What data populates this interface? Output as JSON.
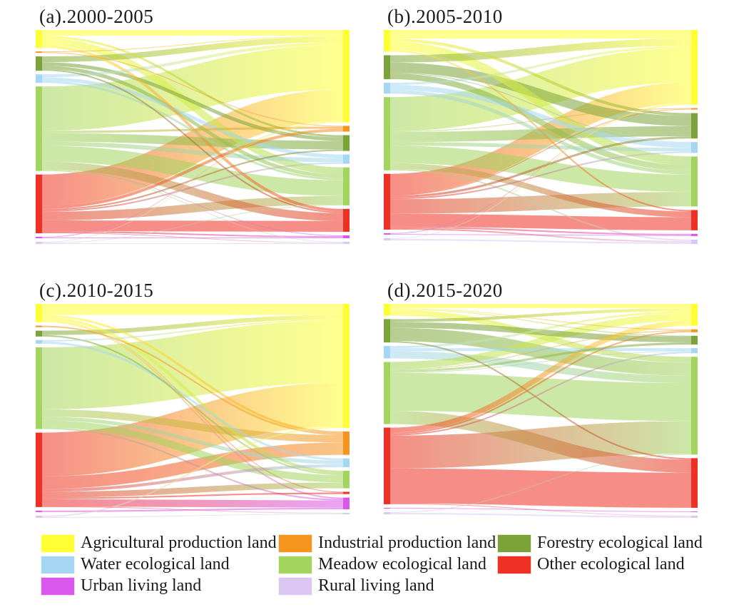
{
  "note": "Sankey (alluvial) figure of land-use transitions over four periods; flow values are relative areas estimated from the rendered band widths (no numeric labels are printed in the figure).",
  "categories": [
    {
      "id": "agricultural",
      "label": "Agricultural production land",
      "color": "#FFFF33"
    },
    {
      "id": "industrial",
      "label": "Industrial production land",
      "color": "#F7941E"
    },
    {
      "id": "forestry",
      "label": "Forestry ecological land",
      "color": "#7BA339"
    },
    {
      "id": "water",
      "label": "Water ecological land",
      "color": "#A6D7F2"
    },
    {
      "id": "meadow",
      "label": "Meadow ecological land",
      "color": "#A2D45E"
    },
    {
      "id": "other",
      "label": "Other ecological land",
      "color": "#EE3124"
    },
    {
      "id": "urban",
      "label": "Urban living land",
      "color": "#D957EB"
    },
    {
      "id": "rural",
      "label": "Rural living land",
      "color": "#DCC6F2"
    }
  ],
  "chart_data": [
    {
      "type": "sankey",
      "title": "(a).2000-2005",
      "link_format": [
        "source_category_index",
        "target_category_index",
        "value_relative_area"
      ],
      "links": [
        [
          0,
          0,
          8
        ],
        [
          0,
          2,
          3
        ],
        [
          0,
          4,
          10
        ],
        [
          0,
          5,
          4
        ],
        [
          1,
          0,
          1
        ],
        [
          1,
          1,
          1
        ],
        [
          2,
          0,
          8
        ],
        [
          2,
          2,
          5
        ],
        [
          2,
          4,
          5
        ],
        [
          2,
          5,
          2
        ],
        [
          3,
          0,
          4
        ],
        [
          3,
          3,
          5
        ],
        [
          3,
          4,
          3
        ],
        [
          4,
          0,
          62
        ],
        [
          4,
          1,
          3
        ],
        [
          4,
          2,
          12
        ],
        [
          4,
          3,
          6
        ],
        [
          4,
          4,
          22
        ],
        [
          4,
          5,
          11
        ],
        [
          4,
          6,
          1
        ],
        [
          4,
          7,
          1
        ],
        [
          5,
          0,
          44
        ],
        [
          5,
          1,
          4
        ],
        [
          5,
          2,
          2
        ],
        [
          5,
          3,
          2
        ],
        [
          5,
          4,
          12
        ],
        [
          5,
          5,
          15
        ],
        [
          5,
          6,
          2
        ],
        [
          5,
          7,
          1
        ],
        [
          6,
          0,
          1
        ],
        [
          6,
          6,
          1
        ],
        [
          7,
          0,
          1
        ],
        [
          7,
          4,
          1
        ],
        [
          7,
          7,
          1
        ]
      ]
    },
    {
      "type": "sankey",
      "title": "(b).2005-2010",
      "link_format": [
        "source_category_index",
        "target_category_index",
        "value_relative_area"
      ],
      "links": [
        [
          0,
          0,
          12
        ],
        [
          0,
          2,
          4
        ],
        [
          0,
          4,
          12
        ],
        [
          0,
          5,
          2
        ],
        [
          2,
          0,
          10
        ],
        [
          2,
          2,
          14
        ],
        [
          2,
          3,
          1
        ],
        [
          2,
          4,
          8
        ],
        [
          3,
          0,
          3
        ],
        [
          3,
          3,
          7
        ],
        [
          3,
          4,
          5
        ],
        [
          4,
          0,
          47
        ],
        [
          4,
          1,
          1
        ],
        [
          4,
          2,
          14
        ],
        [
          4,
          3,
          5
        ],
        [
          4,
          4,
          24
        ],
        [
          4,
          5,
          8
        ],
        [
          4,
          7,
          2
        ],
        [
          5,
          0,
          29
        ],
        [
          5,
          1,
          1
        ],
        [
          5,
          2,
          3
        ],
        [
          5,
          3,
          2
        ],
        [
          5,
          4,
          20
        ],
        [
          5,
          5,
          18
        ],
        [
          5,
          6,
          2
        ],
        [
          5,
          7,
          2
        ],
        [
          6,
          0,
          1
        ],
        [
          6,
          6,
          1
        ],
        [
          7,
          0,
          1
        ],
        [
          7,
          7,
          2
        ]
      ]
    },
    {
      "type": "sankey",
      "title": "(c).2010-2015",
      "link_format": [
        "source_category_index",
        "target_category_index",
        "value_relative_area"
      ],
      "links": [
        [
          0,
          0,
          15
        ],
        [
          0,
          1,
          3
        ],
        [
          0,
          4,
          4
        ],
        [
          0,
          5,
          1
        ],
        [
          0,
          6,
          2
        ],
        [
          1,
          1,
          2
        ],
        [
          2,
          0,
          6
        ],
        [
          2,
          4,
          2
        ],
        [
          3,
          0,
          2
        ],
        [
          3,
          3,
          3
        ],
        [
          4,
          0,
          85
        ],
        [
          4,
          1,
          10
        ],
        [
          4,
          3,
          5
        ],
        [
          4,
          4,
          10
        ],
        [
          4,
          6,
          2
        ],
        [
          5,
          0,
          60
        ],
        [
          5,
          1,
          17
        ],
        [
          5,
          3,
          4
        ],
        [
          5,
          4,
          8
        ],
        [
          5,
          5,
          2
        ],
        [
          5,
          6,
          10
        ],
        [
          5,
          7,
          1
        ],
        [
          6,
          6,
          2
        ],
        [
          7,
          0,
          2
        ],
        [
          7,
          7,
          1
        ]
      ]
    },
    {
      "type": "sankey",
      "title": "(d).2015-2020",
      "link_format": [
        "source_category_index",
        "target_category_index",
        "value_relative_area"
      ],
      "links": [
        [
          0,
          0,
          6
        ],
        [
          0,
          1,
          1
        ],
        [
          0,
          2,
          1
        ],
        [
          0,
          4,
          8
        ],
        [
          2,
          0,
          4
        ],
        [
          2,
          2,
          8
        ],
        [
          2,
          4,
          18
        ],
        [
          2,
          5,
          2
        ],
        [
          3,
          0,
          3
        ],
        [
          3,
          3,
          4
        ],
        [
          3,
          4,
          10
        ],
        [
          4,
          0,
          10
        ],
        [
          4,
          1,
          1
        ],
        [
          4,
          2,
          3
        ],
        [
          4,
          3,
          1
        ],
        [
          4,
          4,
          52
        ],
        [
          4,
          5,
          18
        ],
        [
          5,
          0,
          7
        ],
        [
          5,
          1,
          2
        ],
        [
          5,
          3,
          2
        ],
        [
          5,
          4,
          45
        ],
        [
          5,
          5,
          48
        ],
        [
          5,
          7,
          1
        ],
        [
          6,
          6,
          1
        ],
        [
          7,
          4,
          1
        ],
        [
          7,
          7,
          2
        ]
      ]
    }
  ],
  "legend": {
    "items_order": [
      0,
      1,
      2,
      3,
      4,
      5,
      6,
      7
    ]
  }
}
